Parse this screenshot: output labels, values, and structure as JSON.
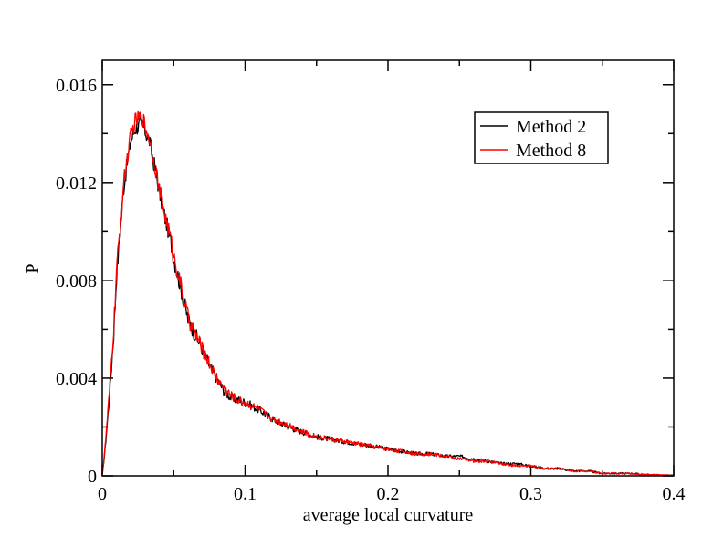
{
  "chart_data": {
    "type": "line",
    "title": "",
    "xlabel": "average local curvature",
    "ylabel": "P",
    "xlim": [
      0,
      0.4
    ],
    "ylim": [
      0,
      0.017
    ],
    "xticks": [
      0,
      0.1,
      0.2,
      0.3,
      0.4
    ],
    "xtick_labels": [
      "0",
      "0.1",
      "0.2",
      "0.3",
      "0.4"
    ],
    "yticks": [
      0,
      0.004,
      0.008,
      0.012,
      0.016
    ],
    "ytick_labels": [
      "0",
      "0.004",
      "0.008",
      "0.012",
      "0.016"
    ],
    "grid": false,
    "legend_position": "top-right",
    "series": [
      {
        "name": "Method 2",
        "color": "#000000",
        "x": [
          0,
          0.002,
          0.005,
          0.008,
          0.01,
          0.013,
          0.015,
          0.018,
          0.02,
          0.023,
          0.025,
          0.028,
          0.03,
          0.033,
          0.035,
          0.038,
          0.04,
          0.043,
          0.045,
          0.048,
          0.05,
          0.055,
          0.06,
          0.065,
          0.07,
          0.075,
          0.08,
          0.085,
          0.09,
          0.095,
          0.1,
          0.11,
          0.12,
          0.13,
          0.14,
          0.15,
          0.16,
          0.17,
          0.18,
          0.19,
          0.2,
          0.21,
          0.22,
          0.23,
          0.24,
          0.25,
          0.26,
          0.27,
          0.28,
          0.29,
          0.3,
          0.31,
          0.32,
          0.33,
          0.34,
          0.35,
          0.36,
          0.37,
          0.38,
          0.39,
          0.4
        ],
        "y": [
          0,
          0.0011,
          0.0032,
          0.0058,
          0.0082,
          0.0103,
          0.0118,
          0.013,
          0.0137,
          0.0142,
          0.0143,
          0.0144,
          0.0141,
          0.0137,
          0.0131,
          0.0123,
          0.0116,
          0.0108,
          0.0103,
          0.0096,
          0.0089,
          0.0077,
          0.0064,
          0.0058,
          0.0052,
          0.0045,
          0.004,
          0.0035,
          0.0032,
          0.0031,
          0.003,
          0.0027,
          0.0023,
          0.002,
          0.0018,
          0.0016,
          0.0015,
          0.0014,
          0.0013,
          0.0012,
          0.0011,
          0.001,
          0.0009,
          0.0009,
          0.0008,
          0.0008,
          0.0007,
          0.0006,
          0.0005,
          0.0005,
          0.0004,
          0.0003,
          0.0003,
          0.0002,
          0.0002,
          0.0001,
          0.0001,
          0.0001,
          5e-05,
          3e-05,
          1e-05
        ]
      },
      {
        "name": "Method 8",
        "color": "#ff0000",
        "x": [
          0,
          0.002,
          0.005,
          0.008,
          0.01,
          0.013,
          0.015,
          0.018,
          0.02,
          0.023,
          0.025,
          0.028,
          0.03,
          0.033,
          0.035,
          0.038,
          0.04,
          0.043,
          0.045,
          0.048,
          0.05,
          0.055,
          0.06,
          0.065,
          0.07,
          0.075,
          0.08,
          0.085,
          0.09,
          0.095,
          0.1,
          0.11,
          0.12,
          0.13,
          0.14,
          0.15,
          0.16,
          0.17,
          0.18,
          0.19,
          0.2,
          0.21,
          0.22,
          0.23,
          0.24,
          0.25,
          0.26,
          0.27,
          0.28,
          0.29,
          0.3,
          0.31,
          0.32,
          0.33,
          0.34,
          0.35,
          0.36,
          0.37,
          0.38,
          0.39,
          0.4
        ],
        "y": [
          0,
          0.0012,
          0.0034,
          0.006,
          0.0084,
          0.0105,
          0.012,
          0.0132,
          0.0139,
          0.0145,
          0.0146,
          0.0147,
          0.0143,
          0.0138,
          0.0132,
          0.0124,
          0.0117,
          0.0109,
          0.0104,
          0.0097,
          0.009,
          0.0078,
          0.0065,
          0.0058,
          0.0052,
          0.0046,
          0.004,
          0.0036,
          0.0033,
          0.0031,
          0.003,
          0.0027,
          0.0023,
          0.0021,
          0.0018,
          0.0016,
          0.0015,
          0.0014,
          0.0013,
          0.0012,
          0.0011,
          0.001,
          0.0009,
          0.0009,
          0.0008,
          0.0007,
          0.0006,
          0.0006,
          0.0005,
          0.0004,
          0.0004,
          0.0003,
          0.0003,
          0.0002,
          0.0002,
          0.0001,
          0.0001,
          0.0001,
          5e-05,
          3e-05,
          1e-05
        ]
      }
    ]
  }
}
